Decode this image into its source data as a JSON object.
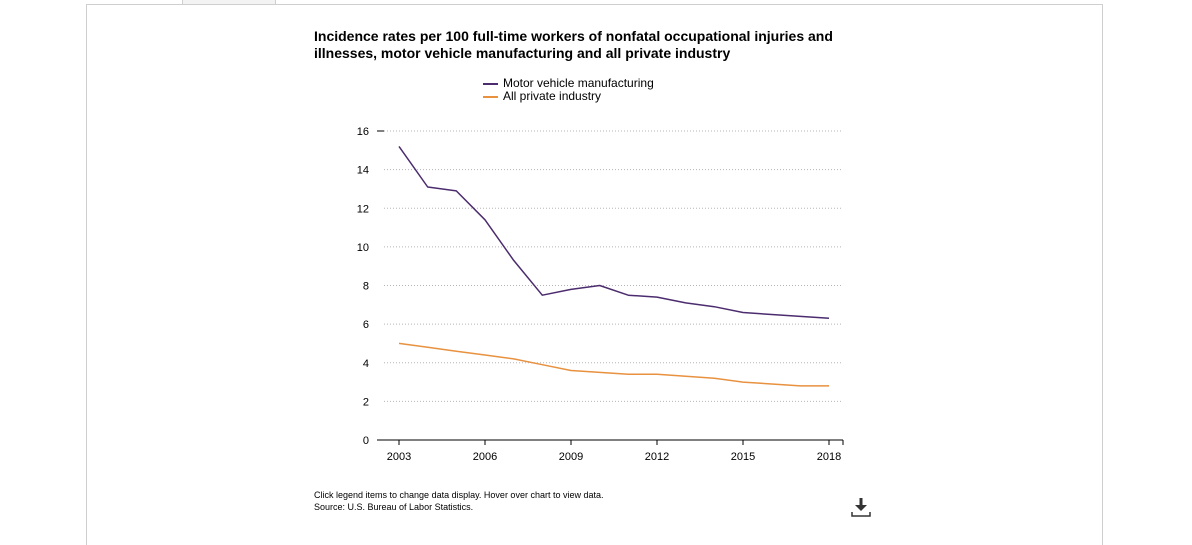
{
  "chart_data": {
    "type": "line",
    "title": "Incidence rates per 100 full-time workers of nonfatal occupational injuries and illnesses, motor vehicle manufacturing and all private industry",
    "x": [
      2003,
      2004,
      2005,
      2006,
      2007,
      2008,
      2009,
      2010,
      2011,
      2012,
      2013,
      2014,
      2015,
      2016,
      2017,
      2018
    ],
    "x_tick_labels": [
      "2003",
      "2006",
      "2009",
      "2012",
      "2015",
      "2018"
    ],
    "y_tick_labels": [
      "0",
      "2",
      "4",
      "6",
      "8",
      "10",
      "12",
      "14",
      "16"
    ],
    "ylim": [
      0,
      16
    ],
    "grid": true,
    "legend_position": "top-center",
    "series": [
      {
        "name": "Motor vehicle manufacturing",
        "color": "#4b2c6e",
        "values": [
          15.2,
          13.1,
          12.9,
          11.4,
          9.3,
          7.5,
          7.8,
          8.0,
          7.5,
          7.4,
          7.1,
          6.9,
          6.6,
          6.5,
          6.4,
          6.3
        ]
      },
      {
        "name": "All private industry",
        "color": "#e8913f",
        "values": [
          5.0,
          4.8,
          4.6,
          4.4,
          4.2,
          3.9,
          3.6,
          3.5,
          3.4,
          3.4,
          3.3,
          3.2,
          3.0,
          2.9,
          2.8,
          2.8
        ]
      }
    ]
  },
  "footnote": {
    "line1": "Click legend items to change data display. Hover over chart to view data.",
    "line2": "Source: U.S. Bureau of Labor Statistics."
  },
  "download": {
    "icon": "download-icon"
  }
}
